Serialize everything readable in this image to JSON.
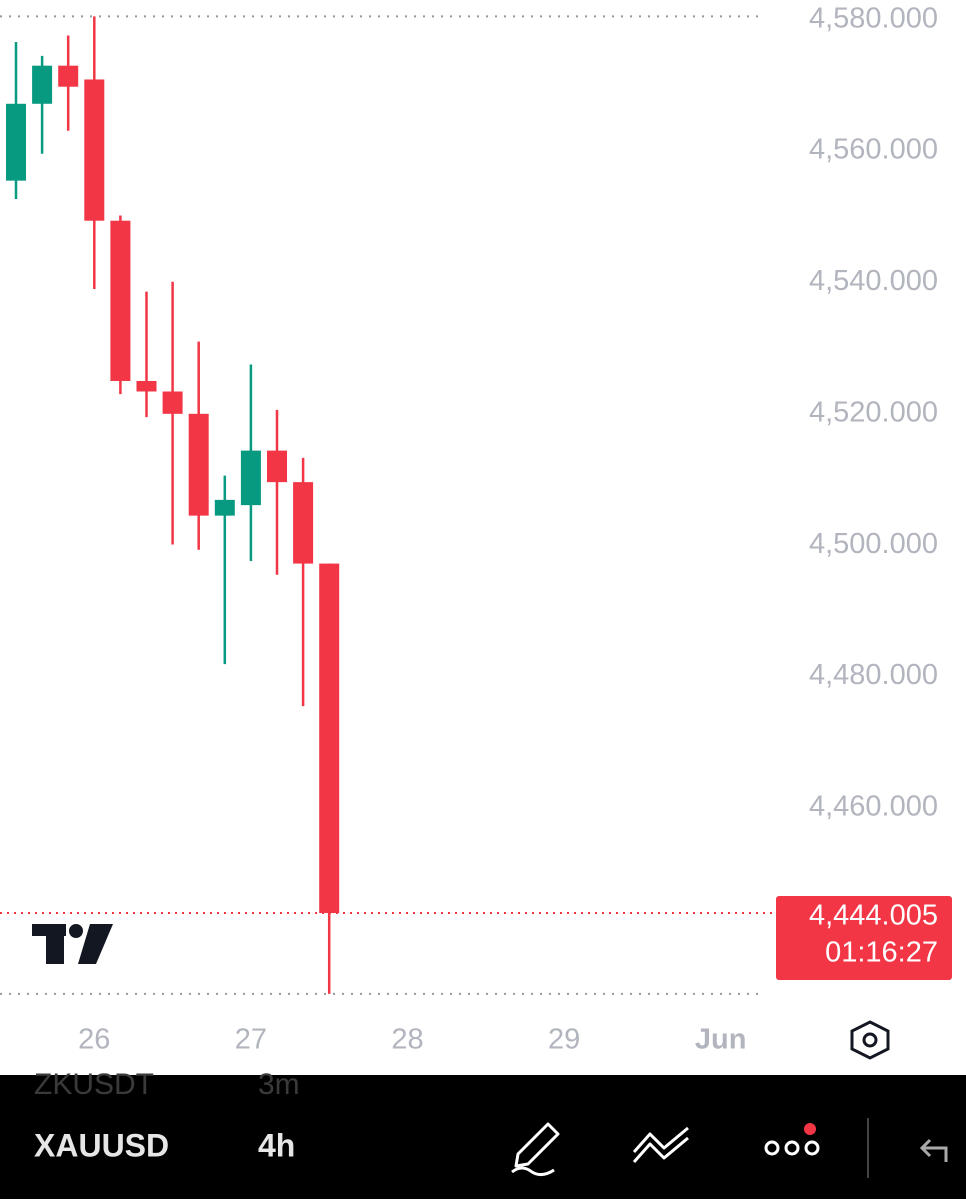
{
  "chart_data": {
    "type": "candlestick",
    "categories": [
      null,
      null,
      null,
      null,
      null,
      null,
      null,
      null,
      null,
      null,
      null,
      null,
      null
    ],
    "open": [
      4555.5,
      4567.2,
      4573.0,
      4570.9,
      4549.4,
      4525.0,
      4523.4,
      4520.0,
      4504.5,
      4506.1,
      4514.4,
      4509.6,
      4497.2
    ],
    "high": [
      4576.6,
      4574.5,
      4577.6,
      4580.5,
      4550.2,
      4538.6,
      4540.1,
      4531.0,
      4510.6,
      4527.5,
      4520.6,
      4513.3,
      4497.2
    ],
    "low": [
      4552.7,
      4559.6,
      4563.1,
      4539.0,
      4523.0,
      4519.5,
      4500.1,
      4499.3,
      4481.9,
      4497.6,
      4495.5,
      4475.5,
      4431.7
    ],
    "close": [
      4567.2,
      4573.0,
      4569.8,
      4549.4,
      4525.0,
      4523.4,
      4520.0,
      4504.5,
      4506.9,
      4514.4,
      4509.6,
      4497.2,
      4444.005
    ],
    "up_color": "#089981",
    "down_color": "#f23645",
    "ylim": [
      4430,
      4583
    ],
    "yticks": [
      {
        "value": 4580,
        "label": "4,580.000"
      },
      {
        "value": 4560,
        "label": "4,560.000"
      },
      {
        "value": 4540,
        "label": "4,540.000"
      },
      {
        "value": 4520,
        "label": "4,520.000"
      },
      {
        "value": 4500,
        "label": "4,500.000"
      },
      {
        "value": 4480,
        "label": "4,480.000"
      },
      {
        "value": 4460,
        "label": "4,460.000"
      }
    ],
    "xticks": [
      {
        "value": 3,
        "label": "26"
      },
      {
        "value": 9,
        "label": "27"
      },
      {
        "value": 15,
        "label": "28"
      },
      {
        "value": 21,
        "label": "29"
      },
      {
        "value": 27,
        "label": "Jun"
      }
    ],
    "last_price": {
      "value": 4444.005,
      "label": "4,444.005"
    },
    "countdown": "01:16:27"
  },
  "toolbar": {
    "symbol": "XAUUSD",
    "interval": "4h",
    "prev_symbol": "ZKUSDT",
    "prev_interval": "3m"
  }
}
